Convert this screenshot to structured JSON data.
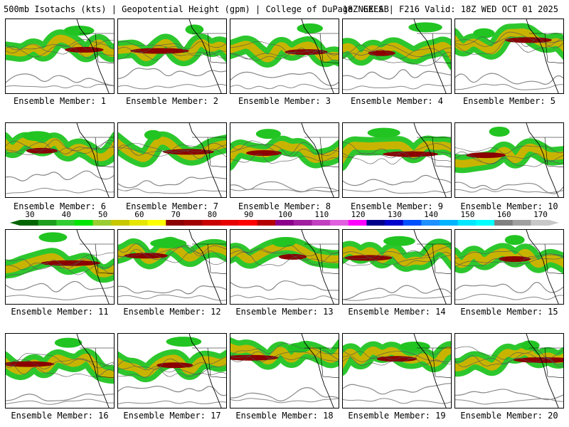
{
  "header": {
    "left": "500mb Isotachs (kts) | Geopotential Height (gpm) | College of DuPage NEXLAB",
    "right": "18Z GEFS | F216 Valid: 18Z WED OCT 01 2025"
  },
  "members": [
    "Ensemble Member: 1",
    "Ensemble Member: 2",
    "Ensemble Member: 3",
    "Ensemble Member: 4",
    "Ensemble Member: 5",
    "Ensemble Member: 6",
    "Ensemble Member: 7",
    "Ensemble Member: 8",
    "Ensemble Member: 9",
    "Ensemble Member: 10",
    "Ensemble Member: 11",
    "Ensemble Member: 12",
    "Ensemble Member: 13",
    "Ensemble Member: 14",
    "Ensemble Member: 15",
    "Ensemble Member: 16",
    "Ensemble Member: 17",
    "Ensemble Member: 18",
    "Ensemble Member: 19",
    "Ensemble Member: 20"
  ],
  "colorbar": {
    "labels": [
      "30",
      "40",
      "50",
      "60",
      "70",
      "80",
      "90",
      "100",
      "110",
      "120",
      "130",
      "140",
      "150",
      "160",
      "170"
    ],
    "colors": [
      "#006400",
      "#1e9e1e",
      "#32cd32",
      "#00e600",
      "#9acd32",
      "#c8c800",
      "#e6e600",
      "#ffff00",
      "#8b0000",
      "#a00000",
      "#c80000",
      "#e60000",
      "#ff0000",
      "#b40000",
      "#8b008b",
      "#a020a0",
      "#c040c0",
      "#e060e0",
      "#ff00ff",
      "#00008b",
      "#0000cd",
      "#0050ff",
      "#1e90ff",
      "#00b4ff",
      "#00e6ff",
      "#00ffff",
      "#808080",
      "#a0a0a0",
      "#c8c8c8"
    ]
  },
  "legend_colors": {
    "jet_low": "#22c422",
    "jet_mid": "#c8b400",
    "jet_core": "#8b0000",
    "height_contour": "#888888",
    "coastline": "#000000",
    "wind_lines": "#555555"
  }
}
